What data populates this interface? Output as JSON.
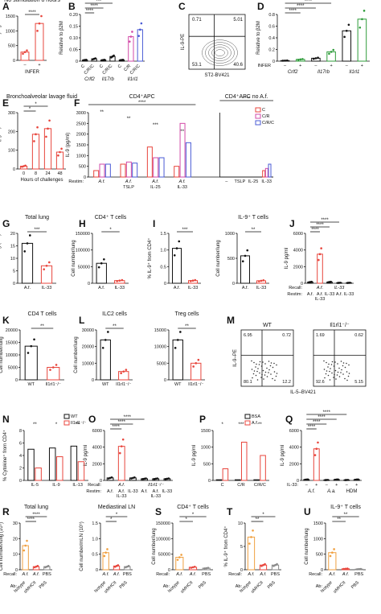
{
  "figure_panels": [
    "A",
    "B",
    "C",
    "D",
    "E",
    "F",
    "G",
    "H",
    "I",
    "J",
    "K",
    "L",
    "M",
    "N",
    "O",
    "P",
    "Q",
    "R",
    "S",
    "T",
    "U"
  ],
  "colors": {
    "red": "#e8453c",
    "green": "#2e9c3a",
    "blue": "#4a5bd6",
    "pink": "#d24aa8",
    "orange": "#f0a040",
    "gray": "#888888",
    "black": "#111111"
  },
  "chart_data": [
    {
      "panel": "A",
      "type": "bar",
      "title": "No stimulation 8 hours",
      "ylabel": "CD69-PE-Cy7 gMFI",
      "ylim": [
        0,
        1500
      ],
      "yticks": [
        "0",
        "500",
        "1000",
        "1500"
      ],
      "xtick_labels": [
        "–",
        "+"
      ],
      "xgroup_label": "INFER",
      "values": [
        280,
        1250
      ],
      "colors": [
        "#e8453c",
        "#e8453c"
      ],
      "annotations": [
        "****"
      ]
    },
    {
      "panel": "B",
      "type": "bar",
      "ylabel": "Relative to β2M",
      "ylim": [
        0,
        0.2
      ],
      "yticks": [
        "0",
        "0.05",
        "0.10",
        "0.15",
        "0.20"
      ],
      "categories": [
        "C",
        "C/R/C",
        "C",
        "C/R/C",
        "C",
        "C/R",
        "C/R/C"
      ],
      "groups": [
        "Crlf2",
        "Il17rb",
        "Il1rl1"
      ],
      "values": [
        0.005,
        0.01,
        0.005,
        0.02,
        0.005,
        0.105,
        0.135
      ],
      "colors": [
        "#111111",
        "#111111",
        "#111111",
        "#111111",
        "#111111",
        "#d24aa8",
        "#4a5bd6"
      ],
      "annotations": [
        "****",
        "****",
        "***"
      ]
    },
    {
      "panel": "C",
      "type": "scatter",
      "xlabel": "ST2-BV421",
      "ylabel": "IL-9-PE",
      "quadrants": [
        "0.71",
        "5.01",
        "53.1",
        "40.6"
      ]
    },
    {
      "panel": "D",
      "type": "bar",
      "ylabel": "Relative to β2M",
      "ylim": [
        0,
        0.8
      ],
      "yticks": [
        "0",
        "0.2",
        "0.4",
        "0.6",
        "0.8"
      ],
      "xtick_labels": [
        "–",
        "+",
        "–",
        "+",
        "–",
        "+"
      ],
      "xgroup_label": "INFER",
      "groups": [
        "Crlf2",
        "Il17rb",
        "Il1rl1"
      ],
      "values": [
        0.01,
        0.03,
        0.05,
        0.16,
        0.52,
        0.72
      ],
      "colors": [
        "#111111",
        "#2e9c3a",
        "#111111",
        "#2e9c3a",
        "#111111",
        "#2e9c3a"
      ],
      "annotations": [
        "****",
        "****",
        "****",
        "*",
        "*"
      ]
    },
    {
      "panel": "E",
      "type": "bar",
      "title": "Bronchoalveolar lavage fluid",
      "ylabel": "IL-33 (pg/ml)",
      "xlabel": "Hours of challenges",
      "ylim": [
        0,
        300
      ],
      "yticks": [
        "0",
        "100",
        "200",
        "300"
      ],
      "categories": [
        "0",
        "8",
        "24",
        "48"
      ],
      "values": [
        15,
        185,
        215,
        90
      ],
      "colors": [
        "#e8453c",
        "#e8453c",
        "#e8453c",
        "#e8453c"
      ],
      "annotations": [
        "*",
        "*"
      ]
    },
    {
      "panel": "F",
      "type": "bar",
      "title": "CD4⁺APC",
      "title2": "CD4⁺APC no A.f.",
      "ylabel": "IL-9 (pg/ml)",
      "ylim": [
        0,
        3000
      ],
      "yticks": [
        "0",
        "500",
        "1000",
        "1500",
        "2000",
        "2500",
        "3000"
      ],
      "xlabel": "Restim:",
      "legend": [
        "C",
        "C/R",
        "C/R/C"
      ],
      "legend_colors": [
        "#e8453c",
        "#d24aa8",
        "#4a5bd6"
      ],
      "groups": [
        "A.f.",
        "A.f. + TSLP",
        "A.f. + IL-25",
        "A.f. + IL-33"
      ],
      "groups2": [
        "–",
        "TSLP",
        "IL-25",
        "IL-33"
      ],
      "series": [
        {
          "name": "C",
          "values": [
            300,
            600,
            1400,
            500
          ]
        },
        {
          "name": "C/R",
          "values": [
            600,
            700,
            900,
            2500
          ]
        },
        {
          "name": "C/R/C",
          "values": [
            600,
            650,
            900,
            1600
          ]
        }
      ],
      "series2": [
        {
          "name": "C",
          "values": [
            0,
            0,
            0,
            300
          ]
        },
        {
          "name": "C/R",
          "values": [
            0,
            0,
            0,
            400
          ]
        },
        {
          "name": "C/R/C",
          "values": [
            0,
            0,
            0,
            600
          ]
        }
      ],
      "annotations": [
        "****",
        "****",
        "**",
        "**",
        "***",
        "**"
      ]
    },
    {
      "panel": "G",
      "type": "bar",
      "title": "Total lung",
      "ylabel": "Cell number/lung (10⁵)",
      "ylim": [
        0,
        20
      ],
      "yticks": [
        "0",
        "5",
        "10",
        "15",
        "20"
      ],
      "categories": [
        "A.f.",
        "IL-33"
      ],
      "values": [
        16,
        7
      ],
      "colors": [
        "#111111",
        "#e8453c"
      ],
      "annotations": [
        "***"
      ]
    },
    {
      "panel": "H",
      "type": "bar",
      "title": "CD4⁺ T cells",
      "ylabel": "Cell number/lung",
      "ylim": [
        0,
        150000
      ],
      "yticks": [
        "0",
        "50000",
        "100000",
        "150000"
      ],
      "categories": [
        "A.f.",
        "IL-33"
      ],
      "values": [
        60000,
        8000
      ],
      "colors": [
        "#111111",
        "#e8453c"
      ],
      "annotations": [
        "*"
      ]
    },
    {
      "panel": "I",
      "type": "bar",
      "title": "IL-9⁺ T cells",
      "ylabel": "% IL-9⁺ from CD4⁺",
      "ylabel2": "Cell number/lung",
      "ylim": [
        0,
        1.5
      ],
      "yticks": [
        "0",
        "0.5",
        "1.0",
        "1.5"
      ],
      "ylim2": [
        0,
        1000
      ],
      "yticks2": [
        "0",
        "500",
        "1000"
      ],
      "categories": [
        "A.f.",
        "IL-33"
      ],
      "values": [
        1.05,
        0.08
      ],
      "values2": [
        550,
        50
      ],
      "colors": [
        "#111111",
        "#e8453c"
      ],
      "annotations": [
        "***",
        "**"
      ]
    },
    {
      "panel": "J",
      "type": "bar",
      "ylabel": "IL-9 pg/ml",
      "ylim": [
        0,
        6000
      ],
      "yticks": [
        "0",
        "2000",
        "4000",
        "6000"
      ],
      "recall": [
        "A.f.",
        "IL-33"
      ],
      "restim": [
        "A.f.",
        "A.f.",
        "IL-33",
        "A.f.",
        "IL-33"
      ],
      "restim2": [
        "",
        "IL-33",
        "",
        "",
        ""
      ],
      "values": [
        150,
        3500,
        150,
        50,
        50
      ],
      "colors": [
        "#111111",
        "#e8453c",
        "#111111",
        "#111111",
        "#111111"
      ],
      "annotations": [
        "****",
        "****",
        "****"
      ]
    },
    {
      "panel": "K",
      "type": "bar",
      "title": "CD4 T cells",
      "ylabel": "Cell number/lung",
      "ylim": [
        0,
        20000
      ],
      "yticks": [
        "0",
        "5000",
        "10000",
        "15000",
        "20000"
      ],
      "categories": [
        "WT",
        "Il1rl1⁻/⁻"
      ],
      "values": [
        13500,
        5000
      ],
      "colors": [
        "#111111",
        "#e8453c"
      ],
      "annotations": [
        "**"
      ]
    },
    {
      "panel": "L",
      "type": "bar",
      "title": "ILC2 cells",
      "title2": "Treg cells",
      "ylabel": "Cell number/lung",
      "ylim": [
        0,
        30000
      ],
      "yticks": [
        "0",
        "10000",
        "20000",
        "30000"
      ],
      "ylim2": [
        0,
        15000
      ],
      "yticks2": [
        "0",
        "5000",
        "10000",
        "15000"
      ],
      "categories": [
        "WT",
        "Il1rl1⁻/⁻"
      ],
      "values": [
        24000,
        5000
      ],
      "values2": [
        12000,
        5000
      ],
      "colors": [
        "#111111",
        "#e8453c"
      ],
      "annotations": [
        "**",
        "**"
      ]
    },
    {
      "panel": "M",
      "type": "scatter",
      "title": "WT",
      "title2": "Il1rl1⁻/⁻",
      "xlabel": "IL-5–BV421",
      "ylabel": "IL-9–PE",
      "quadrants": [
        "6.95",
        "0.72",
        "80.1",
        "12.2"
      ],
      "quadrants2": [
        "1.69",
        "0.62",
        "92.6",
        "5.15"
      ]
    },
    {
      "panel": "N",
      "type": "bar",
      "ylabel": "% Cytokine⁺ from CD4⁺",
      "ylim": [
        0,
        8
      ],
      "yticks": [
        "0",
        "2",
        "4",
        "6",
        "8"
      ],
      "legend": [
        "WT",
        "Il1rl1⁻/⁻"
      ],
      "legend_colors": [
        "#111111",
        "#e8453c"
      ],
      "categories": [
        "IL-5",
        "IL-9",
        "IL-13"
      ],
      "series": [
        {
          "name": "WT",
          "values": [
            5,
            5.2,
            5.5
          ]
        },
        {
          "name": "Il1rl1⁻/⁻",
          "values": [
            2,
            3.8,
            3
          ]
        }
      ],
      "annotations": [
        "**",
        "*",
        "**"
      ]
    },
    {
      "panel": "O",
      "type": "bar",
      "ylabel": "IL-9 pg/ml",
      "ylim": [
        0,
        6000
      ],
      "yticks": [
        "0",
        "2000",
        "4000",
        "6000"
      ],
      "recall": [
        "A.f.",
        "Il1rl1⁻/⁻"
      ],
      "restim": [
        "A.f.",
        "A.f.",
        "IL-33",
        "A.f.",
        "A.f.",
        "IL-33"
      ],
      "restim2": [
        "",
        "IL-33",
        "",
        "",
        "IL-33",
        ""
      ],
      "values": [
        300,
        4100,
        300,
        200,
        200,
        200
      ],
      "colors": [
        "#111111",
        "#e8453c",
        "#111111",
        "#111111",
        "#111111",
        "#111111"
      ],
      "annotations": [
        "****",
        "****",
        "****"
      ]
    },
    {
      "panel": "P",
      "type": "bar",
      "ylabel": "IL-9 pg/ml",
      "ylim": [
        0,
        1500
      ],
      "yticks": [
        "0",
        "500",
        "1000",
        "1500"
      ],
      "legend": [
        "BSA",
        "A.f."
      ],
      "legend_colors": [
        "#111111",
        "#e8453c"
      ],
      "categories": [
        "C",
        "C/R",
        "C/R/C"
      ],
      "series": [
        {
          "name": "BSA",
          "values": [
            20,
            20,
            20
          ]
        },
        {
          "name": "A.f.",
          "values": [
            350,
            1150,
            750
          ]
        }
      ],
      "annotations": [
        "*",
        "***",
        "**"
      ]
    },
    {
      "panel": "Q",
      "type": "bar",
      "ylabel": "IL-9 pg/ml",
      "ylim": [
        0,
        6000
      ],
      "yticks": [
        "0",
        "2000",
        "4000",
        "6000"
      ],
      "xgroup_label": "IL-33:",
      "xtick_labels": [
        "–",
        "+",
        "–",
        "+",
        "–",
        "+"
      ],
      "groups": [
        "A.f.",
        "A.a.",
        "HDM"
      ],
      "values": [
        100,
        3800,
        50,
        100,
        50,
        100
      ],
      "colors": [
        "#111111",
        "#e8453c",
        "#111111",
        "#111111",
        "#111111",
        "#111111"
      ],
      "annotations": [
        "****",
        "****",
        "****",
        "****"
      ]
    },
    {
      "panel": "R",
      "type": "bar",
      "title": "Total lung",
      "title2": "Mediastinal LN",
      "ylabel": "Cell number/lung (10⁵)",
      "ylabel2": "Cell number/mLN (10⁵)",
      "ylim": [
        0,
        30
      ],
      "yticks": [
        "0",
        "10",
        "20",
        "30"
      ],
      "ylim2": [
        0,
        1.5
      ],
      "yticks2": [
        "0",
        "0.5",
        "1.0",
        "1.5"
      ],
      "categories": [
        "Isotype",
        "αMHCII",
        "PBS"
      ],
      "recall": [
        "A.f.",
        "A.f.",
        "PBS"
      ],
      "values": [
        15.5,
        2,
        2
      ],
      "values2": [
        0.55,
        0.12,
        0.1
      ],
      "colors": [
        "#f0a040",
        "#e8453c",
        "#888888"
      ],
      "annotations": [
        "****",
        "****",
        "*",
        "*"
      ]
    },
    {
      "panel": "S",
      "type": "bar",
      "title": "CD4⁺ T cells",
      "ylabel": "Cell number/lung",
      "ylim": [
        0,
        150000
      ],
      "yticks": [
        "0",
        "50000",
        "100000",
        "150000"
      ],
      "categories": [
        "Isotype",
        "αMHCII",
        "PBS"
      ],
      "recall": [
        "A.f.",
        "A.f.",
        "PBS"
      ],
      "values": [
        40000,
        8000,
        5000
      ],
      "colors": [
        "#f0a040",
        "#e8453c",
        "#888888"
      ],
      "annotations": [
        "*",
        "*"
      ]
    },
    {
      "panel": "T",
      "type": "bar",
      "ylabel": "% IL-9⁺ from CD4⁺",
      "ylim": [
        0,
        10
      ],
      "yticks": [
        "0",
        "5",
        "10"
      ],
      "categories": [
        "Isotype",
        "αMHCII",
        "PBS"
      ],
      "recall": [
        "A.f.",
        "A.f.",
        "PBS"
      ],
      "values": [
        7,
        1,
        1
      ],
      "colors": [
        "#f0a040",
        "#e8453c",
        "#888888"
      ],
      "annotations": [
        "**",
        "*"
      ]
    },
    {
      "panel": "U",
      "type": "bar",
      "title": "IL-9⁺ T cells",
      "ylabel": "Cell number/lung",
      "ylim": [
        0,
        1500
      ],
      "yticks": [
        "0",
        "500",
        "1000",
        "1500"
      ],
      "categories": [
        "Isotype",
        "αMHCII",
        "PBS"
      ],
      "recall": [
        "A.f.",
        "A.f.",
        "PBS"
      ],
      "values": [
        550,
        30,
        20
      ],
      "colors": [
        "#f0a040",
        "#e8453c",
        "#888888"
      ],
      "annotations": [
        "**",
        "**"
      ]
    }
  ],
  "labels": {
    "recall": "Recall:",
    "restim": "Restim:",
    "ab": "Ab:",
    "infer": "INFER"
  }
}
